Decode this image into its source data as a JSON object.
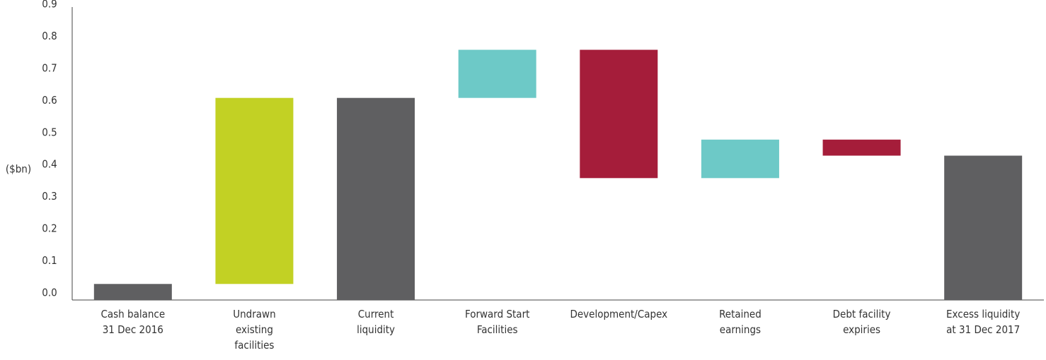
{
  "chart_data": {
    "type": "waterfall",
    "y_label": "($bn)",
    "categories": [
      [
        "Cash balance",
        "31 Dec 2016"
      ],
      [
        "Undrawn",
        "existing",
        "facilities"
      ],
      [
        "Current",
        "liquidity"
      ],
      [
        "Forward Start",
        "Facilities"
      ],
      [
        "Development/Capex"
      ],
      [
        "Retained",
        "earnings"
      ],
      [
        "Debt facility",
        "expiries"
      ],
      [
        "Excess liquidity",
        "at 31 Dec 2017"
      ]
    ],
    "values": [
      0.05,
      0.58,
      0.63,
      0.15,
      -0.4,
      0.12,
      -0.05,
      0.45
    ],
    "measure": [
      "absolute",
      "relative",
      "total",
      "relative",
      "relative",
      "relative",
      "relative",
      "total"
    ],
    "colors": [
      "#5f5f61",
      "#c2d124",
      "#5f5f61",
      "#6dc9c7",
      "#a51d3a",
      "#6dc9c7",
      "#a51d3a",
      "#5f5f61"
    ],
    "ylim": [
      0,
      0.9
    ],
    "yticks": [
      {
        "value": 0,
        "label": "0.0"
      },
      0.1,
      0.2,
      0.3,
      0.4,
      0.5,
      0.6,
      0.7,
      0.8,
      0.9
    ],
    "grid": false
  }
}
